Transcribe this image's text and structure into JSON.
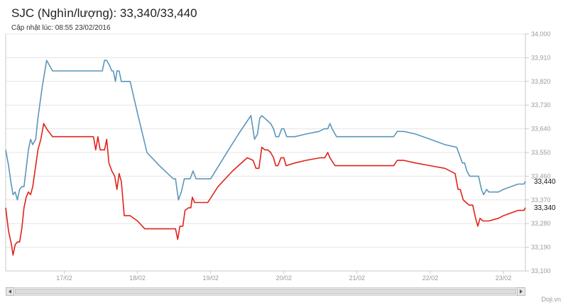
{
  "header": {
    "title": "SJC (Nghìn/lượng): 33,340/33,440",
    "updated": "Cập nhật lúc: 08:55 23/02/2016"
  },
  "credit": "Doji.vn",
  "chart_data": {
    "type": "line",
    "title": "SJC (Nghìn/lượng): 33,340/33,440",
    "subtitle": "Cập nhật lúc: 08:55 23/02/2016",
    "xlim": [
      16.2,
      23.3
    ],
    "ylim": [
      33100,
      34000
    ],
    "y_ticks": [
      34000,
      33910,
      33820,
      33730,
      33640,
      33550,
      33460,
      33370,
      33280,
      33190,
      33100
    ],
    "y_tick_labels": [
      "34,000",
      "33,910",
      "33,820",
      "33,730",
      "33,640",
      "33,550",
      "33,460",
      "33,370",
      "33,280",
      "33,190",
      "33,100"
    ],
    "x_ticks": [
      17,
      18,
      19,
      20,
      21,
      22,
      23
    ],
    "x_tick_labels": [
      "17/02",
      "18/02",
      "19/02",
      "20/02",
      "21/02",
      "22/02",
      "23/02"
    ],
    "grid": true,
    "last_value_labels": [
      "33,440",
      "33,340"
    ],
    "colors": {
      "sell": "#5b96bb",
      "buy": "#e0231a",
      "grid": "#e5e5e5",
      "axis": "#c8c8c8",
      "tick": "#9a9a9a"
    },
    "series": [
      {
        "color": "#5b96bb",
        "points": [
          [
            16.2,
            33560
          ],
          [
            16.24,
            33500
          ],
          [
            16.27,
            33440
          ],
          [
            16.3,
            33390
          ],
          [
            16.33,
            33400
          ],
          [
            16.36,
            33370
          ],
          [
            16.39,
            33410
          ],
          [
            16.42,
            33420
          ],
          [
            16.45,
            33420
          ],
          [
            16.48,
            33490
          ],
          [
            16.51,
            33560
          ],
          [
            16.54,
            33600
          ],
          [
            16.57,
            33580
          ],
          [
            16.61,
            33600
          ],
          [
            16.64,
            33680
          ],
          [
            16.7,
            33800
          ],
          [
            16.76,
            33900
          ],
          [
            16.84,
            33860
          ],
          [
            16.9,
            33860
          ],
          [
            17.0,
            33860
          ],
          [
            17.2,
            33860
          ],
          [
            17.4,
            33860
          ],
          [
            17.52,
            33860
          ],
          [
            17.55,
            33900
          ],
          [
            17.58,
            33900
          ],
          [
            17.62,
            33880
          ],
          [
            17.65,
            33860
          ],
          [
            17.67,
            33860
          ],
          [
            17.7,
            33820
          ],
          [
            17.72,
            33860
          ],
          [
            17.75,
            33860
          ],
          [
            17.78,
            33820
          ],
          [
            17.84,
            33820
          ],
          [
            17.9,
            33820
          ],
          [
            18.0,
            33700
          ],
          [
            18.13,
            33550
          ],
          [
            18.3,
            33500
          ],
          [
            18.49,
            33450
          ],
          [
            18.52,
            33450
          ],
          [
            18.56,
            33370
          ],
          [
            18.6,
            33400
          ],
          [
            18.64,
            33450
          ],
          [
            18.68,
            33450
          ],
          [
            18.72,
            33450
          ],
          [
            18.76,
            33480
          ],
          [
            18.8,
            33450
          ],
          [
            18.9,
            33450
          ],
          [
            19.0,
            33450
          ],
          [
            19.2,
            33540
          ],
          [
            19.38,
            33620
          ],
          [
            19.55,
            33690
          ],
          [
            19.6,
            33600
          ],
          [
            19.64,
            33620
          ],
          [
            19.67,
            33680
          ],
          [
            19.7,
            33690
          ],
          [
            19.74,
            33680
          ],
          [
            19.78,
            33670
          ],
          [
            19.82,
            33660
          ],
          [
            19.86,
            33640
          ],
          [
            19.89,
            33610
          ],
          [
            19.93,
            33610
          ],
          [
            19.97,
            33640
          ],
          [
            20.0,
            33640
          ],
          [
            20.04,
            33610
          ],
          [
            20.15,
            33610
          ],
          [
            20.3,
            33620
          ],
          [
            20.48,
            33630
          ],
          [
            20.55,
            33640
          ],
          [
            20.6,
            33640
          ],
          [
            20.63,
            33660
          ],
          [
            20.66,
            33640
          ],
          [
            20.72,
            33610
          ],
          [
            20.9,
            33610
          ],
          [
            21.1,
            33610
          ],
          [
            21.3,
            33610
          ],
          [
            21.5,
            33610
          ],
          [
            21.55,
            33630
          ],
          [
            21.64,
            33630
          ],
          [
            21.8,
            33620
          ],
          [
            22.0,
            33600
          ],
          [
            22.2,
            33580
          ],
          [
            22.36,
            33570
          ],
          [
            22.4,
            33540
          ],
          [
            22.44,
            33510
          ],
          [
            22.47,
            33510
          ],
          [
            22.5,
            33480
          ],
          [
            22.54,
            33460
          ],
          [
            22.58,
            33460
          ],
          [
            22.62,
            33460
          ],
          [
            22.66,
            33460
          ],
          [
            22.7,
            33410
          ],
          [
            22.73,
            33390
          ],
          [
            22.77,
            33410
          ],
          [
            22.8,
            33400
          ],
          [
            22.85,
            33400
          ],
          [
            22.93,
            33400
          ],
          [
            23.0,
            33410
          ],
          [
            23.1,
            33420
          ],
          [
            23.2,
            33430
          ],
          [
            23.28,
            33430
          ],
          [
            23.3,
            33440
          ]
        ]
      },
      {
        "color": "#e0231a",
        "points": [
          [
            16.2,
            33340
          ],
          [
            16.24,
            33250
          ],
          [
            16.28,
            33200
          ],
          [
            16.3,
            33160
          ],
          [
            16.33,
            33200
          ],
          [
            16.36,
            33210
          ],
          [
            16.39,
            33210
          ],
          [
            16.42,
            33260
          ],
          [
            16.45,
            33340
          ],
          [
            16.48,
            33380
          ],
          [
            16.51,
            33400
          ],
          [
            16.54,
            33390
          ],
          [
            16.57,
            33420
          ],
          [
            16.61,
            33500
          ],
          [
            16.64,
            33560
          ],
          [
            16.68,
            33600
          ],
          [
            16.72,
            33660
          ],
          [
            16.76,
            33640
          ],
          [
            16.84,
            33610
          ],
          [
            16.9,
            33610
          ],
          [
            17.0,
            33610
          ],
          [
            17.2,
            33610
          ],
          [
            17.4,
            33610
          ],
          [
            17.43,
            33560
          ],
          [
            17.46,
            33610
          ],
          [
            17.49,
            33560
          ],
          [
            17.52,
            33560
          ],
          [
            17.55,
            33560
          ],
          [
            17.58,
            33600
          ],
          [
            17.61,
            33510
          ],
          [
            17.65,
            33480
          ],
          [
            17.69,
            33460
          ],
          [
            17.72,
            33410
          ],
          [
            17.75,
            33470
          ],
          [
            17.78,
            33440
          ],
          [
            17.82,
            33310
          ],
          [
            17.9,
            33310
          ],
          [
            18.0,
            33290
          ],
          [
            18.1,
            33260
          ],
          [
            18.28,
            33260
          ],
          [
            18.46,
            33260
          ],
          [
            18.52,
            33260
          ],
          [
            18.55,
            33220
          ],
          [
            18.58,
            33270
          ],
          [
            18.62,
            33270
          ],
          [
            18.65,
            33330
          ],
          [
            18.7,
            33340
          ],
          [
            18.73,
            33340
          ],
          [
            18.75,
            33380
          ],
          [
            18.78,
            33360
          ],
          [
            18.86,
            33360
          ],
          [
            18.96,
            33360
          ],
          [
            19.1,
            33420
          ],
          [
            19.3,
            33480
          ],
          [
            19.5,
            33530
          ],
          [
            19.58,
            33520
          ],
          [
            19.62,
            33490
          ],
          [
            19.66,
            33490
          ],
          [
            19.7,
            33570
          ],
          [
            19.74,
            33560
          ],
          [
            19.78,
            33560
          ],
          [
            19.82,
            33550
          ],
          [
            19.86,
            33530
          ],
          [
            19.89,
            33500
          ],
          [
            19.92,
            33500
          ],
          [
            19.96,
            33530
          ],
          [
            20.0,
            33530
          ],
          [
            20.03,
            33500
          ],
          [
            20.15,
            33510
          ],
          [
            20.3,
            33520
          ],
          [
            20.5,
            33530
          ],
          [
            20.56,
            33530
          ],
          [
            20.6,
            33550
          ],
          [
            20.63,
            33530
          ],
          [
            20.7,
            33500
          ],
          [
            20.9,
            33500
          ],
          [
            21.1,
            33500
          ],
          [
            21.3,
            33500
          ],
          [
            21.5,
            33500
          ],
          [
            21.55,
            33520
          ],
          [
            21.64,
            33520
          ],
          [
            21.8,
            33510
          ],
          [
            22.0,
            33500
          ],
          [
            22.2,
            33490
          ],
          [
            22.34,
            33470
          ],
          [
            22.38,
            33410
          ],
          [
            22.41,
            33410
          ],
          [
            22.45,
            33370
          ],
          [
            22.49,
            33360
          ],
          [
            22.53,
            33350
          ],
          [
            22.58,
            33350
          ],
          [
            22.62,
            33300
          ],
          [
            22.65,
            33270
          ],
          [
            22.68,
            33300
          ],
          [
            22.72,
            33290
          ],
          [
            22.8,
            33290
          ],
          [
            22.93,
            33300
          ],
          [
            23.0,
            33310
          ],
          [
            23.1,
            33320
          ],
          [
            23.2,
            33330
          ],
          [
            23.28,
            33330
          ],
          [
            23.3,
            33340
          ]
        ]
      }
    ]
  }
}
